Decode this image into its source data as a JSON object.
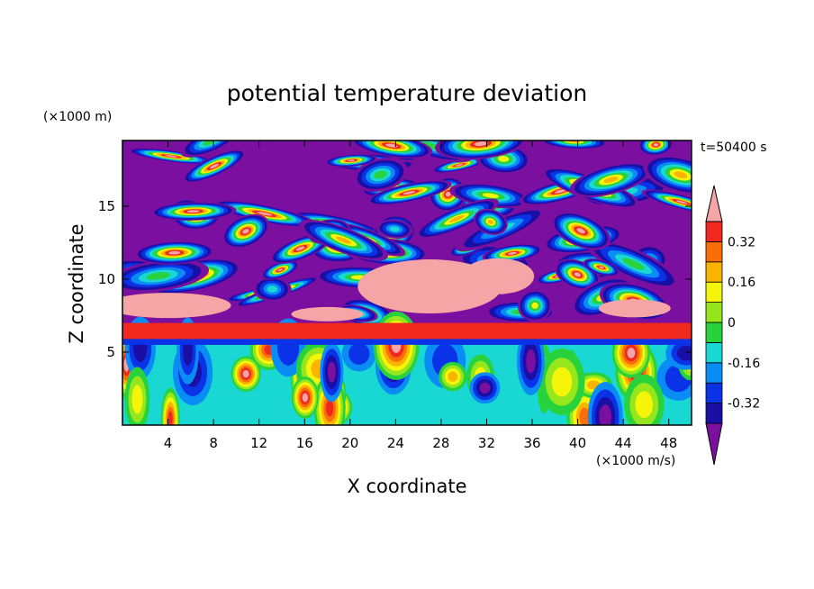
{
  "chart_data": {
    "type": "heatmap",
    "title": "potential temperature deviation",
    "xlabel": "X coordinate",
    "ylabel": "Z coordinate",
    "x_unit": "(×1000 m/s)",
    "y_unit": "(×1000 m)",
    "time_label": "t=50400 s",
    "xlim": [
      0,
      50
    ],
    "ylim": [
      0,
      19.5
    ],
    "x_ticks": [
      4,
      8,
      12,
      16,
      20,
      24,
      28,
      32,
      36,
      40,
      44,
      48
    ],
    "y_ticks": [
      5,
      10,
      15
    ],
    "colorbar": {
      "levels": [
        -0.4,
        -0.32,
        -0.24,
        -0.16,
        -0.08,
        0,
        0.08,
        0.16,
        0.24,
        0.32,
        0.4
      ],
      "labels": [
        "0.32",
        "0.16",
        "0",
        "-0.16",
        "-0.32"
      ],
      "label_values": [
        0.32,
        0.16,
        0,
        -0.16,
        -0.32
      ],
      "colors": [
        "#7a0fa0",
        "#1a0fa5",
        "#0a32e6",
        "#0a8cf5",
        "#19d7d2",
        "#28d23c",
        "#96e61e",
        "#f5f50a",
        "#fab400",
        "#fa6e0a",
        "#f0281e",
        "#f5a5a5"
      ],
      "extend": "both"
    },
    "regions": {
      "upper_band_z": [
        7.5,
        19.5
      ],
      "orange_layer_z": [
        5.9,
        7.0
      ],
      "lower_band_z": [
        0,
        5.5
      ]
    }
  }
}
